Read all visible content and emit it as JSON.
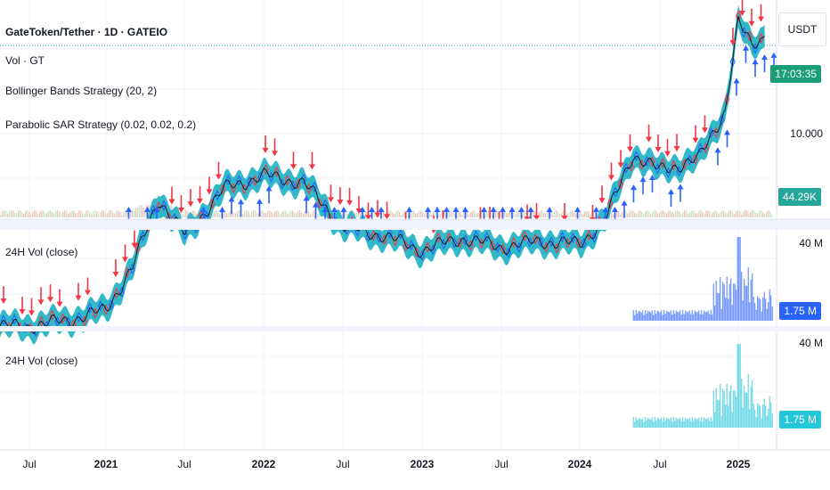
{
  "header": {
    "title": "GateToken/Tether · 1D · GATEIO",
    "indicators": [
      "Vol · GT",
      "Bollinger Bands Strategy (20, 2)",
      "Parabolic SAR Strategy (0.02, 0.02, 0.2)"
    ]
  },
  "price_axis": {
    "currency": "USDT",
    "tick_label": "10.000",
    "countdown": "17:03:35",
    "volume_badge": "44.29K"
  },
  "panes": [
    {
      "label": "24H Vol (close)",
      "axis_top": "40 M",
      "badge": "1.75 M",
      "color": "#2962ff"
    },
    {
      "label": "24H Vol (close)",
      "axis_top": "40 M",
      "badge": "1.75 M",
      "color": "#26c6da"
    }
  ],
  "time_axis": [
    {
      "label": "Jul",
      "year": false
    },
    {
      "label": "2021",
      "year": true
    },
    {
      "label": "Jul",
      "year": false
    },
    {
      "label": "2022",
      "year": true
    },
    {
      "label": "Jul",
      "year": false
    },
    {
      "label": "2023",
      "year": true
    },
    {
      "label": "Jul",
      "year": false
    },
    {
      "label": "2024",
      "year": true
    },
    {
      "label": "Jul",
      "year": false
    },
    {
      "label": "2025",
      "year": true
    }
  ],
  "colors": {
    "band": "#26b5c6",
    "sell_arrow": "#f23645",
    "buy_arrow": "#2962ff",
    "price_line": "#131722",
    "countdown_badge": "#1b9e77",
    "volume_badge": "#26a69a"
  },
  "chart_data": {
    "type": "line",
    "title": "GateToken/Tether · 1D · GATEIO",
    "y_scale": "log",
    "x": [
      "2020-04",
      "2020-07",
      "2020-10",
      "2021-01",
      "2021-03",
      "2021-05",
      "2021-07",
      "2021-10",
      "2022-01",
      "2022-04",
      "2022-07",
      "2022-10",
      "2023-01",
      "2023-04",
      "2023-07",
      "2023-10",
      "2024-01",
      "2024-03",
      "2024-05",
      "2024-07",
      "2024-10",
      "2024-12",
      "2025-01",
      "2025-02",
      "2025-03"
    ],
    "series": [
      {
        "values": [
          2.2,
          2.2,
          2.3,
          2.5,
          3.5,
          6.0,
          4.5,
          6.5,
          7.2,
          6.8,
          4.8,
          4.5,
          4.0,
          4.4,
          4.1,
          4.3,
          4.2,
          5.2,
          8.5,
          7.5,
          8.2,
          12.0,
          24.0,
          20.0,
          21.5
        ]
      }
    ],
    "y_tick_labels": [
      "10.000"
    ],
    "volume_panes": [
      {
        "name": "24H Vol (close)",
        "last_value": "1.75 M",
        "y_max_label": "40 M",
        "start": "2024-05"
      },
      {
        "name": "24H Vol (close)",
        "last_value": "1.75 M",
        "y_max_label": "40 M",
        "start": "2024-05"
      }
    ],
    "grid": true
  }
}
